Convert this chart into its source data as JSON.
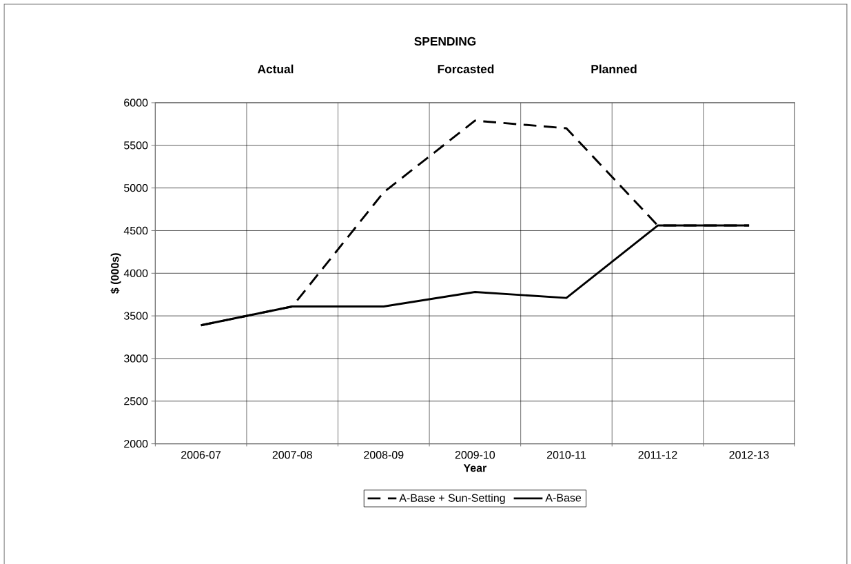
{
  "chart_data": {
    "type": "line",
    "title": "SPENDING",
    "annotations": [
      "Actual",
      "Forcasted",
      "Planned"
    ],
    "xlabel": "Year",
    "ylabel": "$ (000s)",
    "categories": [
      "2006-07",
      "2007-08",
      "2008-09",
      "2009-10",
      "2010-11",
      "2011-12",
      "2012-13"
    ],
    "series": [
      {
        "name": "A-Base + Sun-Setting",
        "color": "#000000",
        "line_style": "dashed",
        "values": [
          3390,
          3610,
          4950,
          5790,
          5700,
          4560,
          4560
        ]
      },
      {
        "name": "A-Base",
        "color": "#000000",
        "line_style": "solid",
        "values": [
          3390,
          3610,
          3610,
          3780,
          3710,
          4560,
          4560
        ]
      }
    ],
    "ylim": [
      2000,
      6000
    ],
    "yticks": [
      2000,
      2500,
      3000,
      3500,
      4000,
      4500,
      5000,
      5500,
      6000
    ],
    "grid": true,
    "legend": "bottom",
    "marker": "none"
  }
}
